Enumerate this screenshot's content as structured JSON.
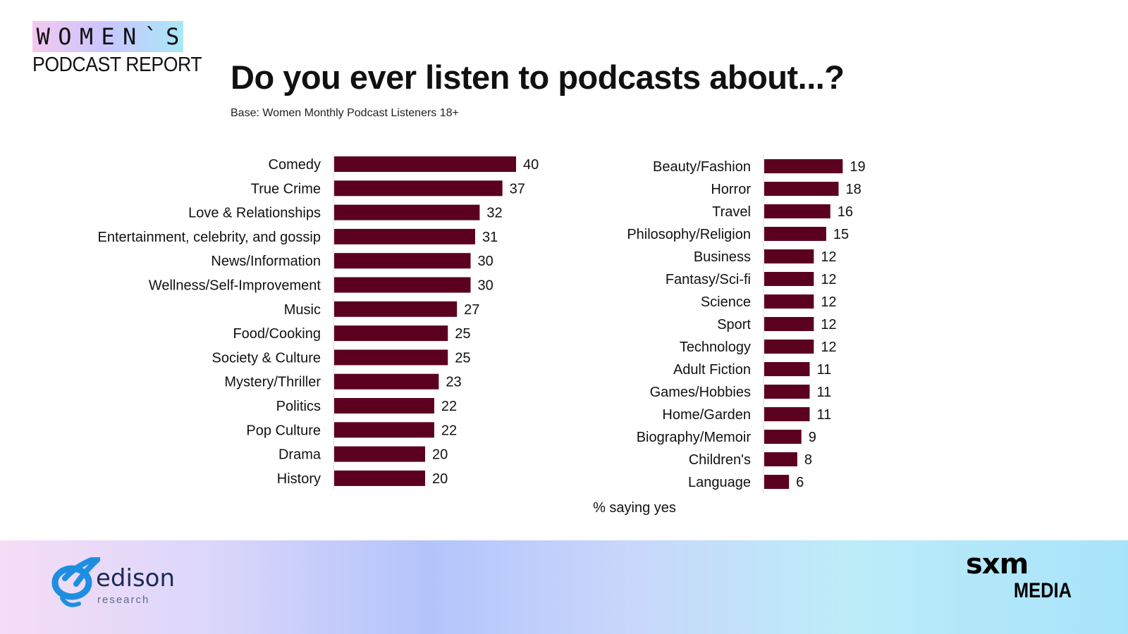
{
  "logo": {
    "letters": [
      "W",
      "O",
      "M",
      "E",
      "N",
      "`",
      "S"
    ],
    "subtitle": "PODCAST REPORT"
  },
  "chart_data": {
    "type": "bar",
    "orientation": "horizontal",
    "title": "Do you ever listen to podcasts about...?",
    "subtitle": "Base: Women Monthly Podcast Listeners 18+",
    "xlabel": "% saying yes",
    "bar_color": "#5c0020",
    "grid": false,
    "panels": [
      {
        "categories": [
          "Comedy",
          "True Crime",
          "Love & Relationships",
          "Entertainment, celebrity, and gossip",
          "News/Information",
          "Wellness/Self-Improvement",
          "Music",
          "Food/Cooking",
          "Society & Culture",
          "Mystery/Thriller",
          "Politics",
          "Pop Culture",
          "Drama",
          "History"
        ],
        "values": [
          40,
          37,
          32,
          31,
          30,
          30,
          27,
          25,
          25,
          23,
          22,
          22,
          20,
          20
        ]
      },
      {
        "categories": [
          "Beauty/Fashion",
          "Horror",
          "Travel",
          "Philosophy/Religion",
          "Business",
          "Fantasy/Sci-fi",
          "Science",
          "Sport",
          "Technology",
          "Adult Fiction",
          "Games/Hobbies",
          "Home/Garden",
          "Biography/Memoir",
          "Children's",
          "Language"
        ],
        "values": [
          19,
          18,
          16,
          15,
          12,
          12,
          12,
          12,
          12,
          11,
          11,
          11,
          9,
          8,
          6
        ]
      }
    ]
  },
  "footer": {
    "edison_name": "edison",
    "edison_sub": "research",
    "sxm_top": "sxm",
    "sxm_bottom": "MEDIA",
    "brand_blue": "#1e8fe0"
  }
}
